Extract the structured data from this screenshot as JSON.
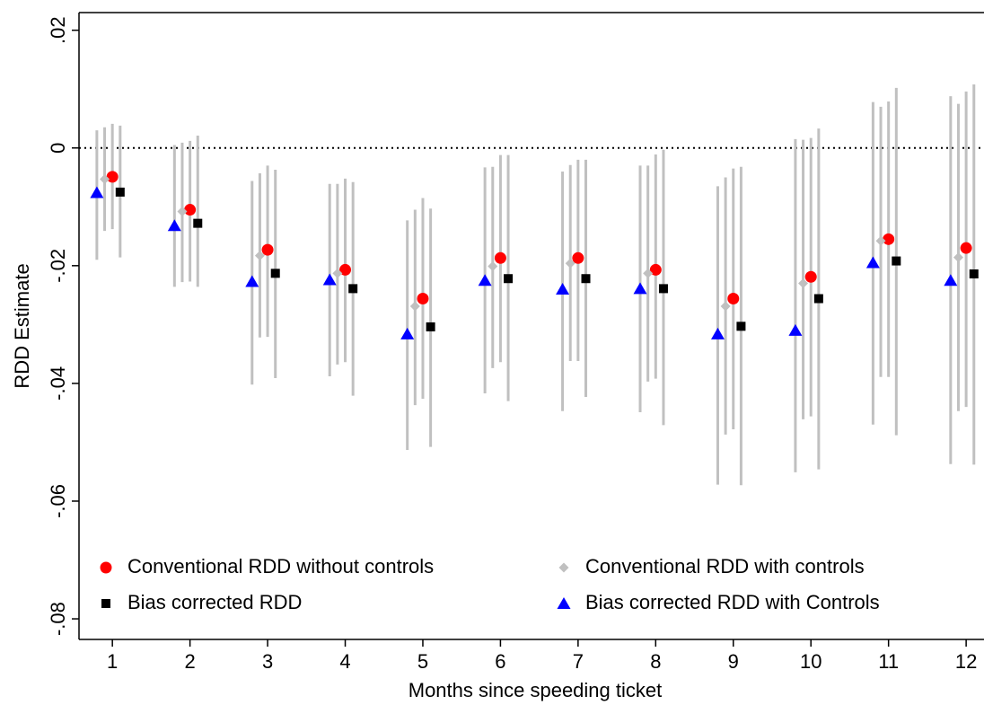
{
  "chart_data": {
    "type": "errorbar-scatter",
    "xlabel": "Months since speeding ticket",
    "ylabel": "RDD Estimate",
    "xlim": [
      0.57,
      12.23
    ],
    "ylim": [
      -0.0835,
      0.023
    ],
    "xticks": [
      1,
      2,
      3,
      4,
      5,
      6,
      7,
      8,
      9,
      10,
      11,
      12
    ],
    "yticks": [
      {
        "value": 0.02,
        "label": ".02"
      },
      0,
      {
        "value": -0.02,
        "label": "-.02"
      },
      {
        "value": -0.04,
        "label": "-.04"
      },
      {
        "value": -0.06,
        "label": "-.06"
      },
      {
        "value": -0.08,
        "label": "-.08"
      }
    ],
    "reference_line": 0,
    "ci_color": "#c0c0c0",
    "series": [
      {
        "name": "Conventional RDD without controls",
        "color": "#ff0000",
        "marker": "circle",
        "x": [
          1,
          2,
          3,
          4,
          5,
          6,
          7,
          8,
          9,
          10,
          11,
          12
        ],
        "values": [
          -0.0049,
          -0.0105,
          -0.0173,
          -0.0207,
          -0.0256,
          -0.0187,
          -0.0187,
          -0.0207,
          -0.0256,
          -0.0219,
          -0.0155,
          -0.017
        ],
        "lower": [
          -0.0138,
          -0.0227,
          -0.0321,
          -0.0364,
          -0.0426,
          -0.0364,
          -0.0362,
          -0.0392,
          -0.0478,
          -0.0456,
          -0.0389,
          -0.044
        ],
        "upper": [
          0.0041,
          0.0012,
          -0.003,
          -0.0052,
          -0.0085,
          -0.0012,
          -0.002,
          -0.0011,
          -0.0035,
          0.0017,
          0.0079,
          0.0096
        ]
      },
      {
        "name": "Conventional RDD with controls",
        "color": "#c0c0c0",
        "marker": "diamond",
        "x": [
          0.9,
          1.9,
          2.9,
          3.9,
          4.9,
          5.9,
          6.9,
          7.9,
          8.9,
          9.9,
          10.9,
          11.9
        ],
        "values": [
          -0.0053,
          -0.0108,
          -0.0183,
          -0.0213,
          -0.0269,
          -0.0201,
          -0.0196,
          -0.0213,
          -0.0269,
          -0.023,
          -0.0158,
          -0.0186
        ],
        "lower": [
          -0.0141,
          -0.0228,
          -0.0322,
          -0.0368,
          -0.0437,
          -0.0374,
          -0.0362,
          -0.0397,
          -0.0487,
          -0.0461,
          -0.0389,
          -0.0447
        ],
        "upper": [
          0.0035,
          0.0009,
          -0.0043,
          -0.0061,
          -0.0105,
          -0.0032,
          -0.0029,
          -0.003,
          -0.005,
          0.0014,
          0.007,
          0.0075
        ]
      },
      {
        "name": "Bias corrected RDD",
        "color": "#000000",
        "marker": "square",
        "x": [
          1.1,
          2.1,
          3.1,
          4.1,
          5.1,
          6.1,
          7.1,
          8.1,
          9.1,
          10.1,
          11.1,
          12.1
        ],
        "values": [
          -0.0075,
          -0.0128,
          -0.0213,
          -0.0239,
          -0.0304,
          -0.0222,
          -0.0222,
          -0.0239,
          -0.0303,
          -0.0256,
          -0.0192,
          -0.0214
        ],
        "lower": [
          -0.0186,
          -0.0236,
          -0.0391,
          -0.0421,
          -0.0508,
          -0.043,
          -0.0423,
          -0.0471,
          -0.0573,
          -0.0546,
          -0.0488,
          -0.0538
        ],
        "upper": [
          0.0038,
          0.0021,
          -0.0037,
          -0.0058,
          -0.0103,
          -0.0012,
          -0.002,
          -0.0003,
          -0.0032,
          0.0033,
          0.0102,
          0.0108
        ]
      },
      {
        "name": "Bias corrected RDD with Controls",
        "color": "#0000ff",
        "marker": "triangle",
        "x": [
          0.8,
          1.8,
          2.8,
          3.8,
          4.8,
          5.8,
          6.8,
          7.8,
          8.8,
          9.8,
          10.8,
          11.8
        ],
        "values": [
          -0.0076,
          -0.0132,
          -0.0227,
          -0.0224,
          -0.0316,
          -0.0225,
          -0.024,
          -0.0239,
          -0.0316,
          -0.031,
          -0.0195,
          -0.0225
        ],
        "lower": [
          -0.019,
          -0.0236,
          -0.0402,
          -0.0388,
          -0.0513,
          -0.0417,
          -0.0447,
          -0.0449,
          -0.0572,
          -0.0551,
          -0.047,
          -0.0537
        ],
        "upper": [
          0.003,
          0.0005,
          -0.0056,
          -0.0061,
          -0.0123,
          -0.0033,
          -0.004,
          -0.003,
          -0.0065,
          0.0015,
          0.0078,
          0.0088
        ]
      }
    ]
  }
}
